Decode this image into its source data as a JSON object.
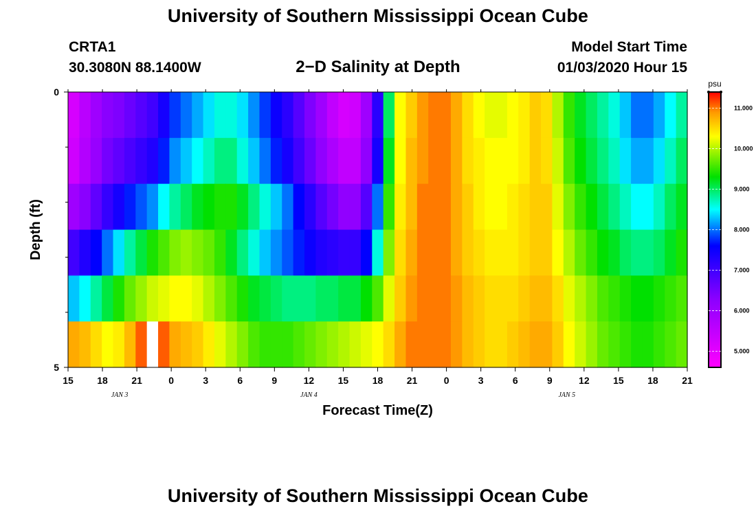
{
  "page": {
    "title_top": "University of Southern Mississippi Ocean Cube",
    "title_bottom": "University of Southern Mississippi Ocean Cube",
    "station_id": "CRTA1",
    "station_coords": "30.3080N 88.1400W",
    "plot_title": "2−D Salinity at Depth",
    "model_start_label": "Model Start Time",
    "model_start_value": "01/03/2020 Hour 15"
  },
  "colors": {
    "background": "#ffffff",
    "axis": "#000000",
    "missing_cell": "#ffffff"
  },
  "chart_data": {
    "type": "heatmap",
    "title": "2−D Salinity at Depth",
    "xlabel": "Forecast Time(Z)",
    "ylabel": "Depth (ft)",
    "x_tick_labels": [
      "15",
      "18",
      "21",
      "0",
      "3",
      "6",
      "9",
      "12",
      "15",
      "18",
      "21",
      "0",
      "3",
      "6",
      "9",
      "12",
      "15",
      "18",
      "21"
    ],
    "x_date_labels": [
      {
        "label": "JAN 3",
        "at_hour_index": 4.5
      },
      {
        "label": "JAN 4",
        "at_hour_index": 21
      },
      {
        "label": "JAN 5",
        "at_hour_index": 43.5
      }
    ],
    "x_range_hours": [
      0,
      54
    ],
    "y_tick_labels": [
      "0",
      "5"
    ],
    "y_range": [
      0,
      5
    ],
    "y_minor_ticks": [
      1,
      2,
      3,
      4
    ],
    "colorbar": {
      "unit": "psu",
      "min": 4.6,
      "max": 11.4,
      "tick_values": [
        5.0,
        6.0,
        7.0,
        8.0,
        9.0,
        10.0,
        11.0
      ],
      "tick_labels": [
        "5.000",
        "6.000",
        "7.000",
        "8.000",
        "9.000",
        "10.000",
        "11.000"
      ],
      "stops": [
        {
          "v": 4.6,
          "c": "#ff00ff"
        },
        {
          "v": 6.3,
          "c": "#8a00ff"
        },
        {
          "v": 7.6,
          "c": "#0000ff"
        },
        {
          "v": 8.5,
          "c": "#00ffff"
        },
        {
          "v": 9.3,
          "c": "#00e000"
        },
        {
          "v": 10.3,
          "c": "#ffff00"
        },
        {
          "v": 10.9,
          "c": "#ff9900"
        },
        {
          "v": 11.4,
          "c": "#ff0000"
        }
      ]
    },
    "depth_rows": [
      0,
      1,
      2,
      3,
      4,
      5
    ],
    "time_step_hours": 1,
    "salinity_columns": [
      [
        5.2,
        5.6,
        6.0,
        6.3,
        6.4,
        6.6,
        6.8,
        7.0,
        7.4,
        7.8,
        8.0,
        8.2,
        8.4,
        8.6,
        8.6,
        8.4,
        8.1,
        7.8,
        7.5,
        7.2,
        6.8,
        6.4,
        6.0,
        5.5,
        5.2,
        5.3,
        6.0,
        7.2,
        9.0,
        10.3,
        10.6,
        10.9,
        11.0,
        11.0,
        10.8,
        10.5,
        10.3,
        10.2,
        10.2,
        10.3,
        10.4,
        10.6,
        10.5,
        10.0,
        9.5,
        9.2,
        9.0,
        8.8,
        8.6,
        8.3,
        8.0,
        8.0,
        8.2,
        8.5,
        8.8
      ],
      [
        5.3,
        5.7,
        6.1,
        6.5,
        6.7,
        6.9,
        7.1,
        7.3,
        7.7,
        8.1,
        8.3,
        8.5,
        8.7,
        8.9,
        8.9,
        8.6,
        8.3,
        8.0,
        7.7,
        7.4,
        7.0,
        6.6,
        6.2,
        5.8,
        5.5,
        5.5,
        6.2,
        7.4,
        9.2,
        10.3,
        10.7,
        10.9,
        11.0,
        11.0,
        10.8,
        10.5,
        10.4,
        10.3,
        10.3,
        10.3,
        10.4,
        10.6,
        10.5,
        10.1,
        9.6,
        9.3,
        9.1,
        8.9,
        8.7,
        8.4,
        8.2,
        8.2,
        8.4,
        8.7,
        9.0
      ],
      [
        6.0,
        6.3,
        6.7,
        7.1,
        7.4,
        7.7,
        7.9,
        8.1,
        8.5,
        8.8,
        9.0,
        9.2,
        9.3,
        9.4,
        9.4,
        9.2,
        8.9,
        8.6,
        8.3,
        8.0,
        7.6,
        7.2,
        6.8,
        6.5,
        6.2,
        6.2,
        6.8,
        8.0,
        9.5,
        10.4,
        10.7,
        11.0,
        11.0,
        11.0,
        10.8,
        10.6,
        10.4,
        10.3,
        10.3,
        10.4,
        10.5,
        10.6,
        10.6,
        10.2,
        9.8,
        9.5,
        9.3,
        9.1,
        8.9,
        8.7,
        8.5,
        8.5,
        8.7,
        9.0,
        9.2
      ],
      [
        7.0,
        7.3,
        7.6,
        8.0,
        8.4,
        8.8,
        9.1,
        9.4,
        9.6,
        9.8,
        9.9,
        9.8,
        9.7,
        9.5,
        9.2,
        8.9,
        8.6,
        8.3,
        8.1,
        7.9,
        7.7,
        7.5,
        7.3,
        7.2,
        7.1,
        7.1,
        7.6,
        8.6,
        9.8,
        10.5,
        10.8,
        11.0,
        11.0,
        11.0,
        10.8,
        10.6,
        10.5,
        10.4,
        10.4,
        10.4,
        10.5,
        10.6,
        10.6,
        10.3,
        10.0,
        9.7,
        9.5,
        9.3,
        9.2,
        9.0,
        8.9,
        8.9,
        9.0,
        9.2,
        9.4
      ],
      [
        8.3,
        8.5,
        8.8,
        9.1,
        9.4,
        9.7,
        9.9,
        10.1,
        10.2,
        10.3,
        10.3,
        10.2,
        10.0,
        9.8,
        9.6,
        9.4,
        9.2,
        9.1,
        9.0,
        8.9,
        8.9,
        8.9,
        9.0,
        9.0,
        9.1,
        9.1,
        9.3,
        9.6,
        10.2,
        10.6,
        10.9,
        11.0,
        11.0,
        11.0,
        10.9,
        10.7,
        10.6,
        10.5,
        10.5,
        10.5,
        10.6,
        10.7,
        10.7,
        10.5,
        10.2,
        10.0,
        9.8,
        9.6,
        9.5,
        9.4,
        9.3,
        9.3,
        9.4,
        9.5,
        9.6
      ],
      [
        10.8,
        10.7,
        10.5,
        10.3,
        10.4,
        10.7,
        11.1,
        11.3,
        11.1,
        10.8,
        10.7,
        10.6,
        10.4,
        10.2,
        10.0,
        9.8,
        9.6,
        9.5,
        9.5,
        9.5,
        9.6,
        9.7,
        9.8,
        9.9,
        10.0,
        10.1,
        10.2,
        10.3,
        10.5,
        10.8,
        11.0,
        11.0,
        11.0,
        11.0,
        10.9,
        10.7,
        10.6,
        10.5,
        10.5,
        10.6,
        10.7,
        10.8,
        10.8,
        10.6,
        10.3,
        10.1,
        9.9,
        9.7,
        9.6,
        9.5,
        9.4,
        9.4,
        9.5,
        9.6,
        9.7
      ]
    ],
    "missing_cells": [
      {
        "row": 5,
        "col": 7
      }
    ]
  }
}
